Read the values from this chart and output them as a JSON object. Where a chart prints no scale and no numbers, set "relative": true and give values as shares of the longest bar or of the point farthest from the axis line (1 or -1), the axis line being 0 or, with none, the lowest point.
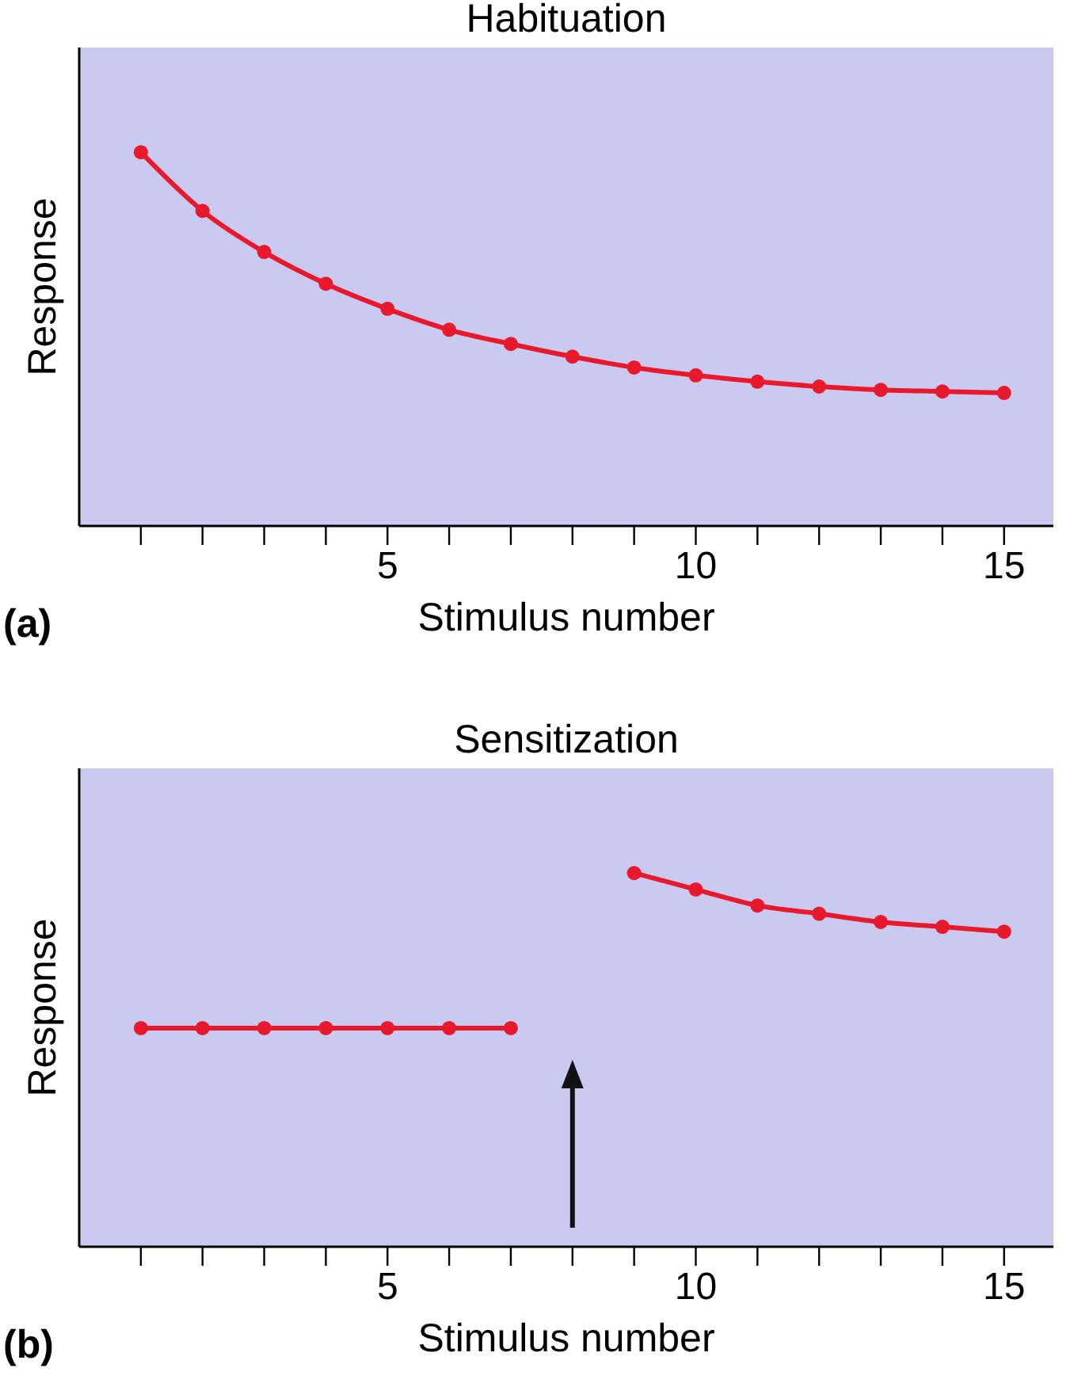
{
  "chart_data": [
    {
      "type": "line",
      "title": "Habituation",
      "xlabel": "Stimulus number",
      "ylabel": "Response",
      "relative": true,
      "marker": "circle",
      "annotations": [
        "(a)"
      ],
      "x": [
        1,
        2,
        3,
        4,
        5,
        6,
        7,
        8,
        9,
        10,
        11,
        12,
        13,
        14,
        15
      ],
      "xlim": [
        0,
        15.8
      ],
      "xticks": [
        {
          "value": 1,
          "label": null
        },
        {
          "value": 2,
          "label": null
        },
        {
          "value": 3,
          "label": null
        },
        {
          "value": 4,
          "label": null
        },
        5,
        {
          "value": 6,
          "label": null
        },
        {
          "value": 7,
          "label": null
        },
        {
          "value": 8,
          "label": null
        },
        {
          "value": 9,
          "label": null
        },
        10,
        {
          "value": 11,
          "label": null
        },
        {
          "value": 12,
          "label": null
        },
        {
          "value": 13,
          "label": null
        },
        {
          "value": 14,
          "label": null
        },
        15
      ],
      "series": [
        {
          "color": "#e8192c",
          "values": [
            1,
            0.843,
            0.733,
            0.648,
            0.581,
            0.525,
            0.487,
            0.453,
            0.424,
            0.403,
            0.386,
            0.373,
            0.364,
            0.36,
            0.356
          ]
        }
      ]
    },
    {
      "type": "line",
      "title": "Sensitization",
      "xlabel": "Stimulus number",
      "ylabel": "Response",
      "relative": true,
      "marker": "circle",
      "annotations": [
        "(b)"
      ],
      "x": [
        1,
        2,
        3,
        4,
        5,
        6,
        7,
        8,
        9,
        10,
        11,
        12,
        13,
        14,
        15
      ],
      "xlim": [
        0,
        15.8
      ],
      "xticks": [
        {
          "value": 1,
          "label": null
        },
        {
          "value": 2,
          "label": null
        },
        {
          "value": 3,
          "label": null
        },
        {
          "value": 4,
          "label": null
        },
        5,
        {
          "value": 6,
          "label": null
        },
        {
          "value": 7,
          "label": null
        },
        {
          "value": 8,
          "label": null
        },
        {
          "value": 9,
          "label": null
        },
        10,
        {
          "value": 11,
          "label": null
        },
        {
          "value": 12,
          "label": null
        },
        {
          "value": 13,
          "label": null
        },
        {
          "value": 14,
          "label": null
        },
        15
      ],
      "series": [
        {
          "color": "#e8192c",
          "values": [
            0.585,
            0.585,
            0.585,
            0.585,
            0.585,
            0.585,
            0.585,
            null,
            1,
            0.956,
            0.913,
            0.891,
            0.869,
            0.856,
            0.843
          ]
        }
      ]
    }
  ]
}
